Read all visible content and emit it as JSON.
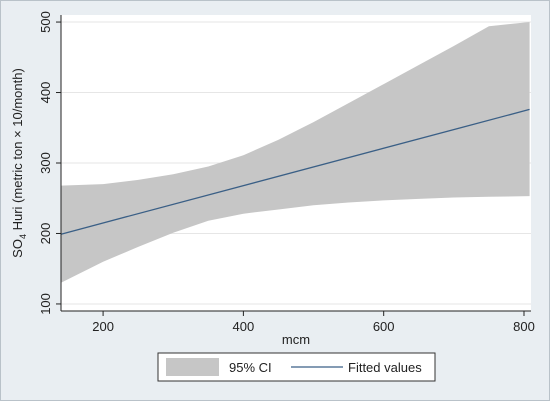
{
  "chart_data": {
    "type": "line",
    "title": "",
    "xlabel": "mcm",
    "ylabel": {
      "prefix": "SO",
      "subscript": "4",
      "rest": " Huri (metric ton × 10/month)"
    },
    "xlim": [
      140,
      810
    ],
    "ylim": [
      90,
      510
    ],
    "xticks": [
      200,
      400,
      600,
      800
    ],
    "yticks": [
      100,
      200,
      300,
      400,
      500
    ],
    "grid": true,
    "legend_position": "bottom",
    "series": [
      {
        "name": "Fitted values",
        "kind": "line",
        "color": "#3a5f86",
        "x": [
          140,
          808
        ],
        "y": [
          199,
          376
        ]
      },
      {
        "name": "95% CI",
        "kind": "band",
        "color": "#c6c6c6",
        "x": [
          140,
          200,
          250,
          300,
          350,
          400,
          450,
          500,
          550,
          600,
          650,
          700,
          750,
          808
        ],
        "upper": [
          268,
          270,
          276,
          284,
          295,
          311,
          333,
          358,
          385,
          412,
          439,
          466,
          494,
          500
        ],
        "lower": [
          130,
          160,
          181,
          201,
          218,
          228,
          234,
          240,
          244,
          247,
          249,
          251,
          252,
          253
        ]
      }
    ]
  }
}
